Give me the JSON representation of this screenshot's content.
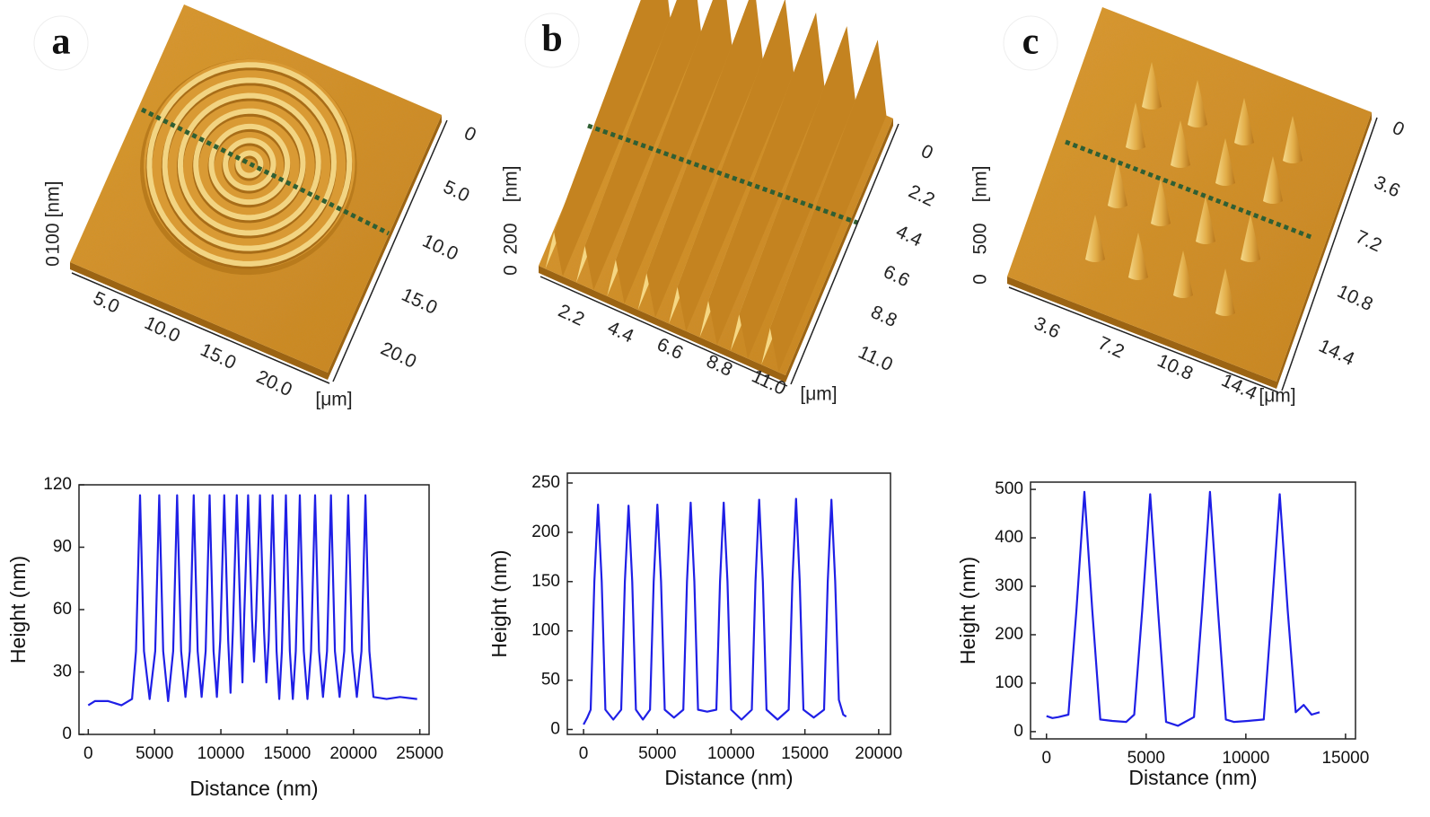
{
  "panels": [
    {
      "label": "a",
      "afm": {
        "z_ticks": [
          "0",
          "100"
        ],
        "z_unit": "[nm]",
        "x_ticks": [
          "5.0",
          "10.0",
          "15.0",
          "20.0"
        ],
        "y_ticks": [
          "0",
          "5.0",
          "10.0",
          "15.0",
          "20.0"
        ],
        "xy_unit": "[μm]"
      }
    },
    {
      "label": "b",
      "afm": {
        "z_ticks": [
          "0",
          "200"
        ],
        "z_unit": "[nm]",
        "x_ticks": [
          "2.2",
          "4.4",
          "6.6",
          "8.8",
          "11.0"
        ],
        "y_ticks": [
          "0",
          "2.2",
          "4.4",
          "6.6",
          "8.8",
          "11.0"
        ],
        "xy_unit": "[μm]"
      }
    },
    {
      "label": "c",
      "afm": {
        "z_ticks": [
          "0",
          "500"
        ],
        "z_unit": "[nm]",
        "x_ticks": [
          "3.6",
          "7.2",
          "10.8",
          "14.4"
        ],
        "y_ticks": [
          "0",
          "3.6",
          "7.2",
          "10.8",
          "14.4"
        ],
        "xy_unit": "[μm]"
      }
    }
  ],
  "chart_data": [
    {
      "type": "line",
      "x_label": "Distance (nm)",
      "y_label": "Height (nm)",
      "color": "#1f1fe6",
      "xlim": [
        -700,
        25700
      ],
      "ylim": [
        0,
        120
      ],
      "xticks": [
        0,
        5000,
        10000,
        15000,
        20000,
        25000
      ],
      "yticks": [
        0,
        30,
        60,
        90,
        120
      ],
      "x": [
        0,
        500,
        1500,
        2500,
        3300,
        3600,
        3900,
        4200,
        4625,
        5050,
        5350,
        5650,
        6025,
        6400,
        6700,
        7000,
        7325,
        7650,
        7950,
        8250,
        8550,
        8850,
        9150,
        9450,
        9700,
        9950,
        10250,
        10550,
        10725,
        10900,
        11200,
        11500,
        11625,
        11750,
        12050,
        12350,
        12500,
        12650,
        12950,
        13250,
        13425,
        13600,
        13900,
        14200,
        14400,
        14600,
        14900,
        15200,
        15425,
        15650,
        15950,
        16250,
        16525,
        16800,
        17100,
        17400,
        17700,
        18000,
        18300,
        18600,
        18950,
        19300,
        19600,
        19900,
        20250,
        20600,
        20900,
        21200,
        21500,
        22500,
        23500,
        24800
      ],
      "values": [
        14,
        16,
        16,
        14,
        17,
        40,
        115,
        40,
        17,
        40,
        115,
        40,
        16,
        40,
        115,
        40,
        18,
        40,
        115,
        40,
        18,
        40,
        115,
        40,
        18,
        45,
        115,
        45,
        20,
        50,
        115,
        50,
        25,
        55,
        115,
        55,
        35,
        55,
        115,
        50,
        25,
        45,
        115,
        40,
        17,
        40,
        115,
        40,
        17,
        40,
        115,
        40,
        17,
        40,
        115,
        40,
        18,
        40,
        115,
        40,
        18,
        40,
        115,
        40,
        18,
        40,
        115,
        40,
        18,
        17,
        18,
        17
      ]
    },
    {
      "type": "line",
      "x_label": "Distance (nm)",
      "y_label": "Height (nm)",
      "color": "#1f1fe6",
      "xlim": [
        -1100,
        20800
      ],
      "ylim": [
        -5,
        260
      ],
      "xticks": [
        0,
        5000,
        10000,
        15000,
        20000
      ],
      "yticks": [
        0,
        50,
        100,
        150,
        200,
        250
      ],
      "x": [
        0,
        250,
        480,
        730,
        980,
        1230,
        1480,
        2015,
        2550,
        2800,
        3050,
        3300,
        3550,
        4025,
        4500,
        4750,
        5000,
        5250,
        5500,
        6130,
        6760,
        7010,
        7260,
        7510,
        7760,
        8380,
        9000,
        9250,
        9500,
        9750,
        10000,
        10700,
        11400,
        11650,
        11900,
        12150,
        12400,
        13150,
        13900,
        14150,
        14400,
        14650,
        14900,
        15600,
        16300,
        16550,
        16800,
        17050,
        17300,
        17600,
        17800
      ],
      "values": [
        5,
        12,
        20,
        150,
        228,
        150,
        20,
        10,
        20,
        150,
        227,
        150,
        20,
        10,
        20,
        150,
        228,
        150,
        20,
        12,
        20,
        150,
        230,
        150,
        20,
        18,
        20,
        150,
        230,
        150,
        20,
        10,
        20,
        150,
        233,
        150,
        20,
        10,
        20,
        150,
        234,
        150,
        20,
        12,
        20,
        150,
        233,
        150,
        30,
        15,
        13
      ]
    },
    {
      "type": "line",
      "x_label": "Distance (nm)",
      "y_label": "Height (nm)",
      "color": "#1f1fe6",
      "xlim": [
        -800,
        15500
      ],
      "ylim": [
        -15,
        515
      ],
      "xticks": [
        0,
        5000,
        10000,
        15000
      ],
      "yticks": [
        0,
        100,
        200,
        300,
        400,
        500
      ],
      "x": [
        0,
        300,
        600,
        1100,
        1500,
        1900,
        2300,
        2700,
        3300,
        4000,
        4400,
        4800,
        5200,
        5600,
        6000,
        6600,
        7400,
        7800,
        8200,
        8600,
        9000,
        9400,
        10100,
        10900,
        11300,
        11700,
        12100,
        12500,
        12900,
        13300,
        13700
      ],
      "values": [
        32,
        28,
        30,
        35,
        250,
        495,
        250,
        25,
        22,
        20,
        35,
        250,
        490,
        250,
        20,
        12,
        30,
        250,
        495,
        250,
        25,
        20,
        22,
        25,
        250,
        490,
        250,
        40,
        55,
        35,
        40
      ]
    }
  ]
}
